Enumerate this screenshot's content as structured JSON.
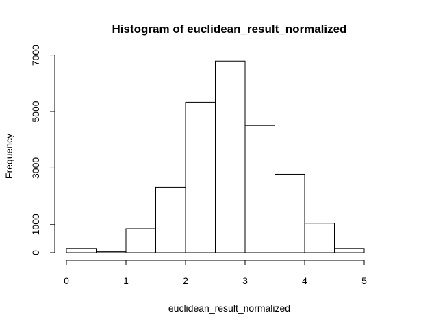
{
  "chart_data": {
    "type": "bar",
    "title": "Histogram of euclidean_result_normalized",
    "xlabel": "euclidean_result_normalized",
    "ylabel": "Frequency",
    "bins": [
      {
        "start": 0.0,
        "end": 0.5,
        "value": 150
      },
      {
        "start": 0.5,
        "end": 1.0,
        "value": 40
      },
      {
        "start": 1.0,
        "end": 1.5,
        "value": 850
      },
      {
        "start": 1.5,
        "end": 2.0,
        "value": 2320
      },
      {
        "start": 2.0,
        "end": 2.5,
        "value": 5330
      },
      {
        "start": 2.5,
        "end": 3.0,
        "value": 6790
      },
      {
        "start": 3.0,
        "end": 3.5,
        "value": 4510
      },
      {
        "start": 3.5,
        "end": 4.0,
        "value": 2780
      },
      {
        "start": 4.0,
        "end": 4.5,
        "value": 1050
      },
      {
        "start": 4.5,
        "end": 5.0,
        "value": 150
      },
      {
        "start": 5.0,
        "end": 5.5,
        "value": 0
      }
    ],
    "xlim": [
      0,
      5.5
    ],
    "ylim": [
      0,
      7000
    ],
    "x_ticks": [
      0,
      1,
      2,
      3,
      4,
      5
    ],
    "x_tick_labels": [
      "0",
      "1",
      "2",
      "3",
      "4",
      "5"
    ],
    "y_ticks": [
      0,
      1000,
      3000,
      5000,
      7000
    ],
    "y_tick_labels": [
      "0",
      "1000",
      "3000",
      "5000",
      "7000"
    ],
    "grid": false,
    "bar_fill": "#ffffff",
    "bar_stroke": "#000000"
  }
}
